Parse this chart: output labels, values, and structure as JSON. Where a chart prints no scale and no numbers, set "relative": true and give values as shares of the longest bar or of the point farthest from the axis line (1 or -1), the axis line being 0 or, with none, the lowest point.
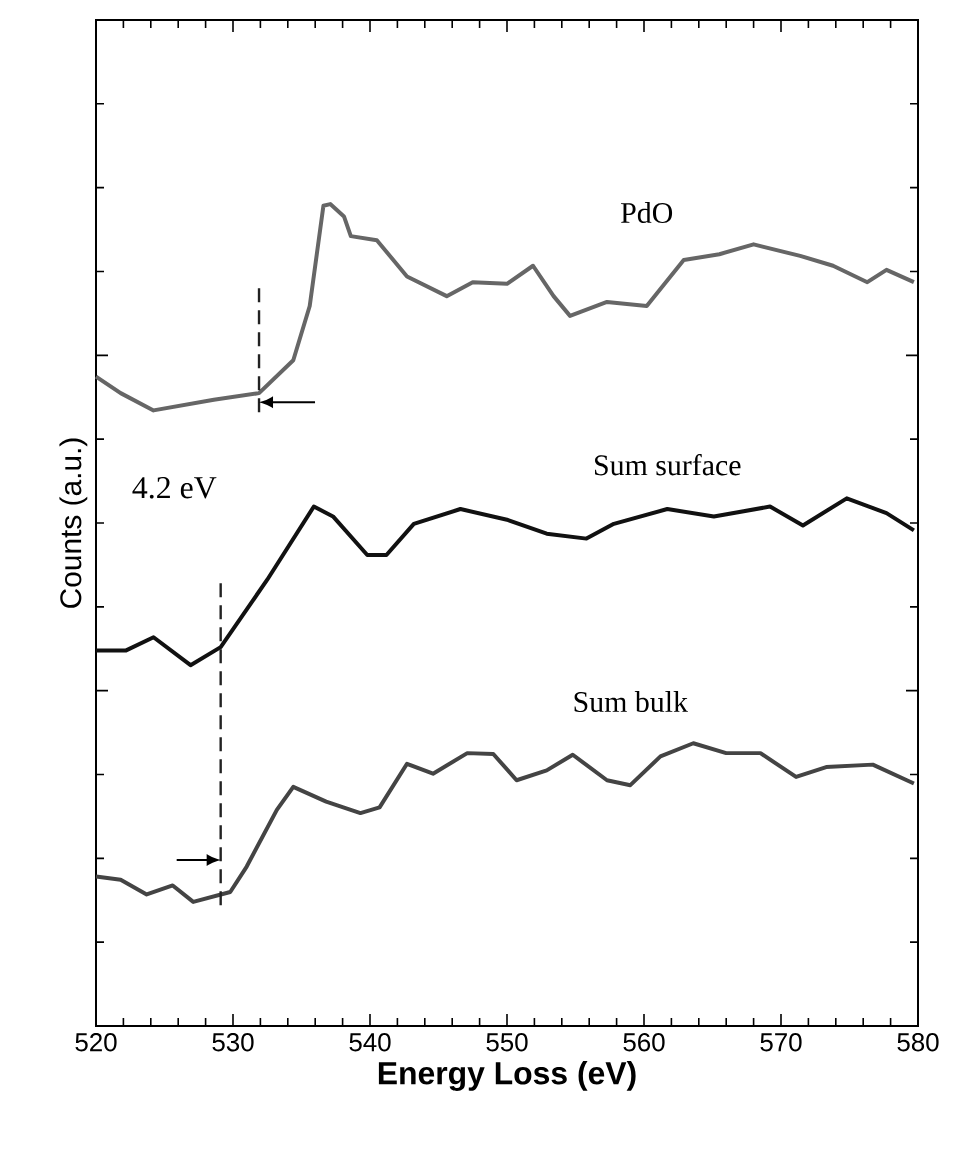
{
  "chart_data": {
    "type": "line",
    "xlabel": "Energy Loss (eV)",
    "ylabel": "Counts (a.u.)",
    "relative": true,
    "xlim": [
      520,
      580
    ],
    "xticks": [
      520,
      530,
      540,
      550,
      560,
      570,
      580
    ],
    "grid": false,
    "legend": false,
    "marker": "none",
    "line_style": "solid",
    "series": [
      {
        "name": "PdO",
        "color": "#666666",
        "x": [
          520,
          521.8,
          524.2,
          528.6,
          531.9,
          534.4,
          535.6,
          536.6,
          537.1,
          538.1,
          538.6,
          540.5,
          542.7,
          545.6,
          547.5,
          550.0,
          551.9,
          553.4,
          554.6,
          557.3,
          560.2,
          562.9,
          565.5,
          568.0,
          571.4,
          573.8,
          576.3,
          577.7,
          579.7
        ],
        "values": [
          0.79,
          0.77,
          0.749,
          0.762,
          0.77,
          0.81,
          0.876,
          0.998,
          1.0,
          0.985,
          0.961,
          0.956,
          0.912,
          0.888,
          0.905,
          0.903,
          0.925,
          0.888,
          0.864,
          0.881,
          0.876,
          0.932,
          0.939,
          0.951,
          0.937,
          0.925,
          0.905,
          0.92,
          0.905
        ]
      },
      {
        "name": "Sum surface",
        "color": "#111111",
        "x": [
          520,
          522.2,
          524.2,
          526.9,
          529.1,
          532.5,
          535.9,
          537.3,
          539.8,
          541.2,
          543.2,
          546.6,
          550.0,
          552.9,
          555.8,
          557.8,
          561.7,
          565.1,
          569.2,
          571.6,
          574.8,
          577.7,
          579.7
        ],
        "values": [
          0.457,
          0.457,
          0.473,
          0.439,
          0.461,
          0.543,
          0.632,
          0.62,
          0.573,
          0.573,
          0.611,
          0.629,
          0.616,
          0.599,
          0.593,
          0.611,
          0.629,
          0.62,
          0.632,
          0.609,
          0.642,
          0.624,
          0.603
        ]
      },
      {
        "name": "Sum bulk",
        "color": "#444444",
        "x": [
          520,
          521.8,
          523.7,
          525.6,
          527.1,
          529.8,
          531.0,
          533.2,
          534.4,
          536.8,
          539.3,
          540.7,
          542.7,
          544.6,
          547.1,
          549.0,
          550.7,
          552.9,
          554.8,
          557.3,
          559.0,
          561.2,
          563.6,
          566.0,
          568.5,
          571.1,
          573.3,
          576.7,
          579.7
        ],
        "values": [
          0.182,
          0.178,
          0.16,
          0.171,
          0.151,
          0.163,
          0.194,
          0.263,
          0.291,
          0.273,
          0.259,
          0.266,
          0.319,
          0.307,
          0.332,
          0.331,
          0.299,
          0.311,
          0.33,
          0.299,
          0.293,
          0.328,
          0.344,
          0.332,
          0.332,
          0.303,
          0.315,
          0.318,
          0.295
        ]
      }
    ],
    "ref_lines": [
      {
        "axis": "x",
        "value": 531.9,
        "line_style": "dashed",
        "color": "#222222"
      },
      {
        "axis": "x",
        "value": 529.1,
        "line_style": "dashed",
        "color": "#222222"
      }
    ],
    "annotations": [
      "4.2 eV"
    ]
  }
}
